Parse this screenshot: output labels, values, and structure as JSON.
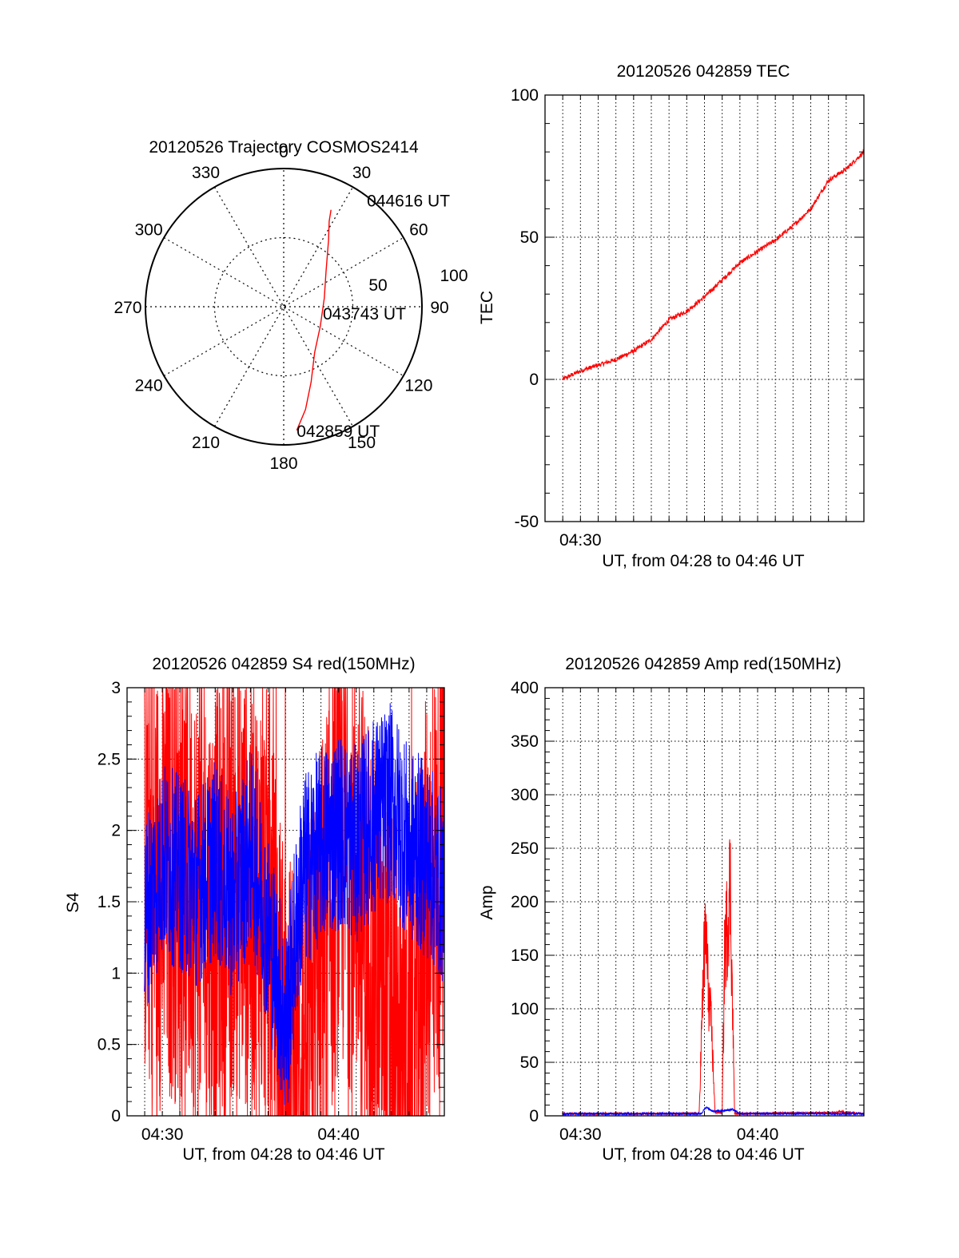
{
  "colors": {
    "red": "#ff0000",
    "blue": "#0000ff",
    "axis": "#000000",
    "grid": "#000000"
  },
  "chart_data": [
    {
      "type": "polar",
      "title": "20120526 Trajectory COSMOS2414",
      "azimuth_labels": [
        "0",
        "30",
        "60",
        "90",
        "120",
        "150",
        "180",
        "210",
        "240",
        "270",
        "300",
        "330"
      ],
      "radial_labels": [
        "50",
        "100"
      ],
      "radial_max": 100,
      "radial_variable": "zenith angle",
      "grid": true,
      "trajectory": {
        "points": [
          {
            "az": 174,
            "r": 90
          },
          {
            "az": 168,
            "r": 76
          },
          {
            "az": 160,
            "r": 58
          },
          {
            "az": 146,
            "r": 40
          },
          {
            "az": 118,
            "r": 30
          },
          {
            "az": 78,
            "r": 30
          },
          {
            "az": 50,
            "r": 40
          },
          {
            "az": 34,
            "r": 58
          },
          {
            "az": 28,
            "r": 70
          },
          {
            "az": 26,
            "r": 78
          }
        ],
        "labels": [
          {
            "text": "042859 UT",
            "az": 174,
            "r": 90
          },
          {
            "text": "043743 UT",
            "az": 90,
            "r": 28
          },
          {
            "text": "044616 UT",
            "az": 26,
            "r": 78
          }
        ]
      }
    },
    {
      "type": "line",
      "title": "20120526 042859 TEC",
      "xlabel": "UT, from 04:28 to 04:46 UT",
      "ylabel": "TEC",
      "x_unit": "minutes",
      "xlim": [
        28.0,
        46.0
      ],
      "ylim": [
        -50,
        100
      ],
      "yticks": [
        -50,
        0,
        50,
        100
      ],
      "xtick_labels": [
        {
          "x": 30,
          "label": "04:30"
        }
      ],
      "grid": true,
      "series": [
        {
          "color": "red",
          "x": [
            28.98,
            30,
            31,
            32,
            33,
            34,
            35,
            36,
            37,
            38,
            39,
            40,
            41,
            42,
            43,
            44,
            45,
            46
          ],
          "y": [
            0,
            3,
            5,
            7,
            10,
            14,
            21,
            24,
            29,
            35,
            41,
            45,
            49,
            54,
            60,
            70,
            74,
            80
          ]
        }
      ]
    },
    {
      "type": "line",
      "title": "20120526 042859 S4 red(150MHz)",
      "xlabel": "UT, from 04:28 to 04:46 UT",
      "ylabel": "S4",
      "x_unit": "minutes",
      "xlim": [
        28.0,
        46.0
      ],
      "ylim": [
        0,
        3
      ],
      "yticks": [
        0,
        0.5,
        1,
        1.5,
        2,
        2.5,
        3
      ],
      "ytick_labels": [
        "0",
        "0.5",
        "1",
        "1.5",
        "2",
        "2.5",
        "3"
      ],
      "xtick_labels": [
        {
          "x": 30,
          "label": "04:30"
        },
        {
          "x": 40,
          "label": "04:40"
        }
      ],
      "grid": true,
      "series": [
        {
          "color": "red",
          "x": [
            28.98,
            30,
            31,
            32,
            33,
            34,
            35,
            36,
            36.5,
            37,
            37.5,
            38,
            38.5,
            39,
            40,
            41,
            42,
            43,
            44,
            45,
            46
          ],
          "y": [
            1.8,
            1.6,
            1.7,
            1.5,
            1.4,
            1.7,
            1.6,
            1.4,
            0.8,
            0.3,
            0.2,
            0.4,
            0.6,
            1.1,
            1.9,
            1.7,
            1.1,
            0.5,
            0.3,
            1.4,
            1.9
          ]
        },
        {
          "color": "blue",
          "x": [
            28.98,
            30,
            31,
            32,
            33,
            34,
            35,
            36,
            36.5,
            37,
            37.5,
            38,
            39,
            40,
            41,
            42,
            43,
            44,
            45,
            46
          ],
          "y": [
            1.4,
            1.8,
            1.7,
            1.6,
            1.8,
            1.5,
            1.9,
            1.3,
            1.0,
            0.6,
            1.2,
            1.7,
            1.9,
            2.0,
            1.9,
            2.1,
            2.2,
            1.9,
            1.8,
            1.6
          ]
        }
      ]
    },
    {
      "type": "line",
      "title": "20120526 042859 Amp red(150MHz)",
      "xlabel": "UT, from 04:28 to 04:46 UT",
      "ylabel": "Amp",
      "x_unit": "minutes",
      "xlim": [
        28.0,
        46.0
      ],
      "ylim": [
        0,
        400
      ],
      "yticks": [
        0,
        50,
        100,
        150,
        200,
        250,
        300,
        350,
        400
      ],
      "xtick_labels": [
        {
          "x": 30,
          "label": "04:30"
        },
        {
          "x": 40,
          "label": "04:40"
        }
      ],
      "grid": true,
      "series": [
        {
          "color": "red",
          "x": [
            28.98,
            35,
            36.7,
            36.95,
            37.1,
            37.2,
            37.4,
            37.6,
            38.0,
            38.15,
            38.3,
            38.45,
            38.7,
            39.0,
            44.5,
            44.6,
            46
          ],
          "y": [
            2,
            2,
            2,
            140,
            170,
            120,
            80,
            3,
            3,
            160,
            180,
            220,
            2,
            2,
            3,
            4,
            2
          ]
        },
        {
          "color": "blue",
          "x": [
            28.98,
            36.8,
            37.1,
            37.5,
            38.2,
            38.6,
            39.0,
            46
          ],
          "y": [
            2,
            2,
            8,
            4,
            5,
            6,
            2,
            2
          ]
        }
      ]
    }
  ]
}
